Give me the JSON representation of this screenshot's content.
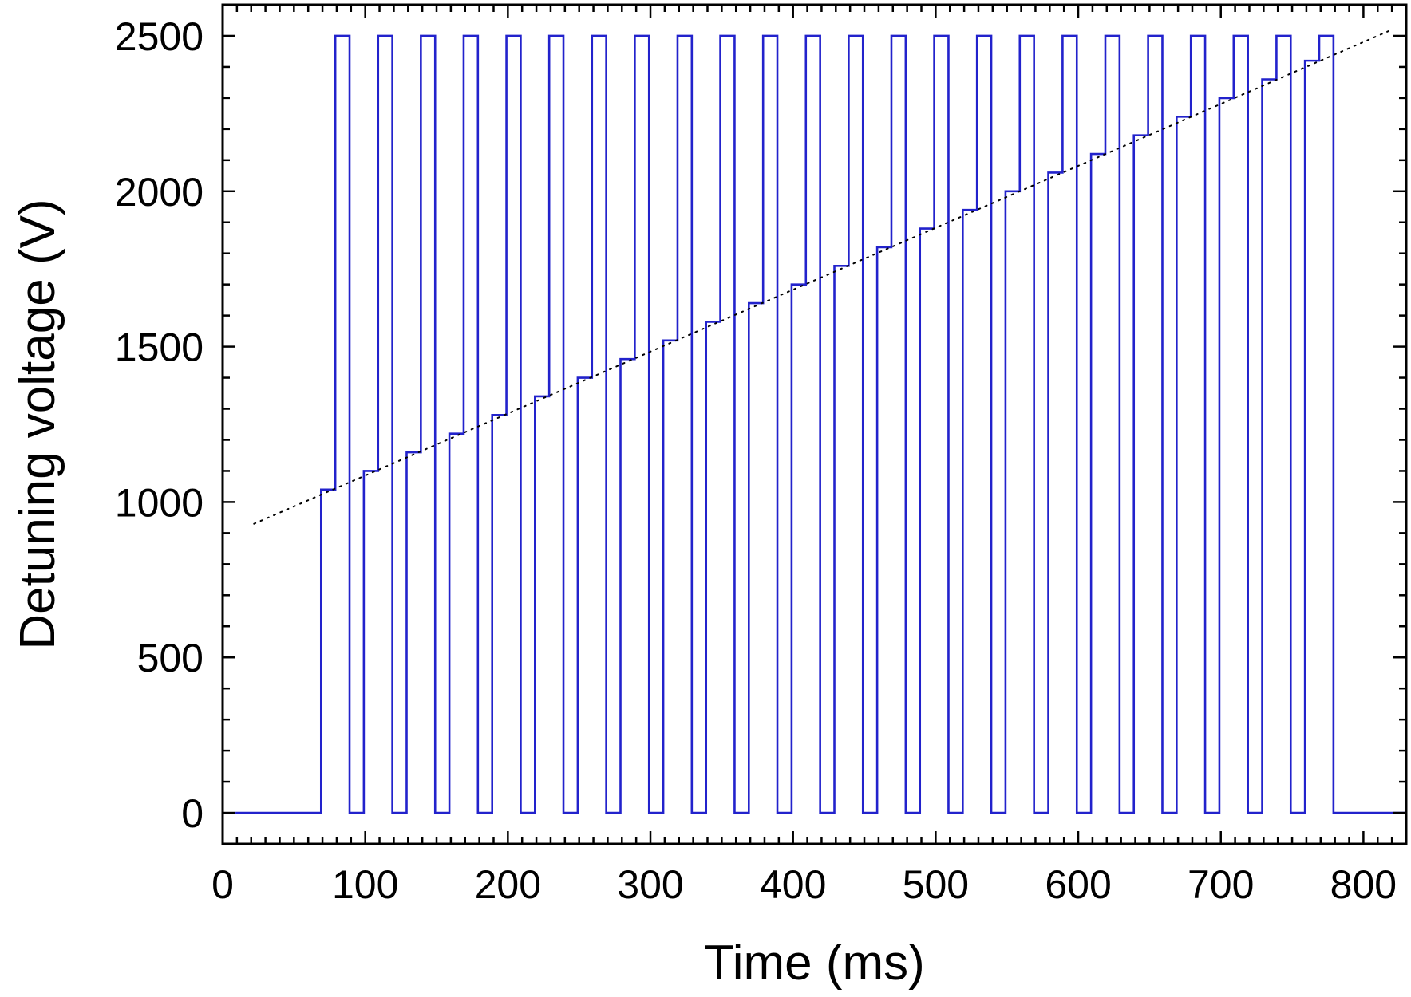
{
  "chart_data": {
    "type": "line",
    "xlabel": "Time (ms)",
    "ylabel": "Detuning voltage (V)",
    "xlim": [
      0,
      830
    ],
    "ylim": [
      -100,
      2600
    ],
    "x_ticks": [
      0,
      100,
      200,
      300,
      400,
      500,
      600,
      700,
      800
    ],
    "y_ticks": [
      0,
      500,
      1000,
      1500,
      2000,
      2500
    ],
    "x_minor_step": 10,
    "y_minor_step": 100,
    "grid": false,
    "colors": {
      "pulse": "#2222cc",
      "trend": "#000000"
    },
    "series": [
      {
        "style": "solid-step",
        "x": [
          9,
          69,
          69,
          79,
          79,
          89,
          89,
          99,
          99,
          109,
          109,
          119,
          119,
          129,
          129,
          139,
          139,
          149,
          149,
          159,
          159,
          169,
          169,
          179,
          179,
          189,
          189,
          199,
          199,
          209,
          209,
          219,
          219,
          229,
          229,
          239,
          239,
          249,
          249,
          259,
          259,
          269,
          269,
          279,
          279,
          289,
          289,
          299,
          299,
          309,
          309,
          319,
          319,
          329,
          329,
          339,
          339,
          349,
          349,
          359,
          359,
          369,
          369,
          379,
          379,
          389,
          389,
          399,
          399,
          409,
          409,
          419,
          419,
          429,
          429,
          439,
          439,
          449,
          449,
          459,
          459,
          469,
          469,
          479,
          479,
          489,
          489,
          499,
          499,
          509,
          509,
          519,
          519,
          529,
          529,
          539,
          539,
          549,
          549,
          559,
          559,
          569,
          569,
          579,
          579,
          589,
          589,
          599,
          599,
          609,
          609,
          619,
          619,
          629,
          629,
          639,
          639,
          649,
          649,
          659,
          659,
          669,
          669,
          679,
          679,
          689,
          689,
          699,
          699,
          709,
          709,
          719,
          719,
          729,
          729,
          739,
          739,
          749,
          749,
          759,
          759,
          769,
          769,
          779,
          779,
          830
        ],
        "y": [
          0,
          0,
          1040,
          1040,
          2500,
          2500,
          0,
          0,
          1100,
          1100,
          2500,
          2500,
          0,
          0,
          1160,
          1160,
          2500,
          2500,
          0,
          0,
          1220,
          1220,
          2500,
          2500,
          0,
          0,
          1280,
          1280,
          2500,
          2500,
          0,
          0,
          1340,
          1340,
          2500,
          2500,
          0,
          0,
          1400,
          1400,
          2500,
          2500,
          0,
          0,
          1460,
          1460,
          2500,
          2500,
          0,
          0,
          1520,
          1520,
          2500,
          2500,
          0,
          0,
          1580,
          1580,
          2500,
          2500,
          0,
          0,
          1640,
          1640,
          2500,
          2500,
          0,
          0,
          1700,
          1700,
          2500,
          2500,
          0,
          0,
          1760,
          1760,
          2500,
          2500,
          0,
          0,
          1820,
          1820,
          2500,
          2500,
          0,
          0,
          1880,
          1880,
          2500,
          2500,
          0,
          0,
          1940,
          1940,
          2500,
          2500,
          0,
          0,
          2000,
          2000,
          2500,
          2500,
          0,
          0,
          2060,
          2060,
          2500,
          2500,
          0,
          0,
          2120,
          2120,
          2500,
          2500,
          0,
          0,
          2180,
          2180,
          2500,
          2500,
          0,
          0,
          2240,
          2240,
          2500,
          2500,
          0,
          0,
          2300,
          2300,
          2500,
          2500,
          0,
          0,
          2360,
          2360,
          2500,
          2500,
          0,
          0,
          2420,
          2420,
          2500,
          2500,
          0,
          0
        ]
      },
      {
        "style": "dotted",
        "x": [
          22,
          820
        ],
        "y": [
          930,
          2520
        ]
      }
    ]
  }
}
